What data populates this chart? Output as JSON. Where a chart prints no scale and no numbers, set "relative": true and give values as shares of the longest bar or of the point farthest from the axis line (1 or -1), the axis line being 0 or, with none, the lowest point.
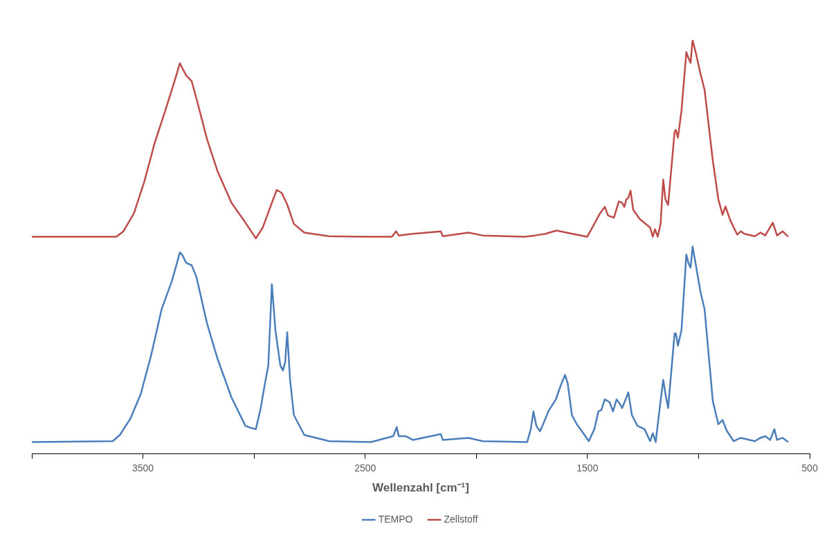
{
  "chart_data": {
    "type": "line",
    "relative": true,
    "xlabel": "Wellenzahl [cm⁻¹]",
    "xlim": [
      4000,
      500
    ],
    "xticks": [
      {
        "value": 4000,
        "label": null
      },
      3500,
      {
        "value": 3000,
        "label": null
      },
      2500,
      {
        "value": 2000,
        "label": null
      },
      1500,
      {
        "value": 1000,
        "label": null
      },
      500
    ],
    "grid": false,
    "legend": "bottom",
    "series": [
      {
        "name": "TEMPO",
        "color": "#4a7ebb",
        "x": [
          4000,
          3636,
          3604,
          3557,
          3510,
          3463,
          3416,
          3369,
          3334,
          3322,
          3306,
          3281,
          3259,
          3212,
          3165,
          3102,
          3039,
          3014,
          2992,
          2970,
          2951,
          2936,
          2920,
          2904,
          2882,
          2870,
          2860,
          2851,
          2838,
          2821,
          2774,
          2662,
          2474,
          2374,
          2358,
          2349,
          2317,
          2286,
          2160,
          2151,
          2035,
          1972,
          1771,
          1755,
          1743,
          1730,
          1714,
          1705,
          1673,
          1642,
          1620,
          1601,
          1589,
          1570,
          1548,
          1516,
          1494,
          1469,
          1451,
          1438,
          1422,
          1400,
          1385,
          1369,
          1353,
          1344,
          1331,
          1316,
          1300,
          1275,
          1243,
          1218,
          1206,
          1193,
          1171,
          1159,
          1149,
          1137,
          1108,
          1102,
          1093,
          1077,
          1055,
          1046,
          1036,
          1027,
          1011,
          992,
          973,
          936,
          911,
          892,
          873,
          842,
          810,
          747,
          722,
          700,
          678,
          659,
          647,
          622,
          597
        ],
        "values": [
          0.029,
          0.031,
          0.046,
          0.085,
          0.145,
          0.239,
          0.35,
          0.419,
          0.487,
          0.48,
          0.462,
          0.456,
          0.427,
          0.316,
          0.231,
          0.137,
          0.068,
          0.063,
          0.06,
          0.111,
          0.171,
          0.214,
          0.41,
          0.299,
          0.214,
          0.202,
          0.222,
          0.294,
          0.179,
          0.094,
          0.046,
          0.031,
          0.029,
          0.043,
          0.065,
          0.043,
          0.043,
          0.034,
          0.048,
          0.034,
          0.039,
          0.031,
          0.029,
          0.06,
          0.103,
          0.068,
          0.055,
          0.065,
          0.106,
          0.132,
          0.166,
          0.191,
          0.171,
          0.094,
          0.072,
          0.048,
          0.031,
          0.06,
          0.103,
          0.106,
          0.132,
          0.125,
          0.103,
          0.132,
          0.12,
          0.111,
          0.128,
          0.149,
          0.094,
          0.068,
          0.06,
          0.031,
          0.05,
          0.029,
          0.128,
          0.179,
          0.145,
          0.111,
          0.291,
          0.291,
          0.262,
          0.299,
          0.482,
          0.462,
          0.45,
          0.501,
          0.453,
          0.393,
          0.35,
          0.128,
          0.072,
          0.082,
          0.056,
          0.031,
          0.039,
          0.031,
          0.039,
          0.043,
          0.034,
          0.06,
          0.034,
          0.039,
          0.029
        ]
      },
      {
        "name": "Zellstoff",
        "color": "#be4b48",
        "x": [
          4000,
          3620,
          3588,
          3541,
          3494,
          3447,
          3400,
          3360,
          3334,
          3306,
          3281,
          3253,
          3212,
          3165,
          3102,
          3039,
          2992,
          2961,
          2920,
          2898,
          2876,
          2851,
          2821,
          2774,
          2662,
          2474,
          2380,
          2361,
          2349,
          2286,
          2160,
          2151,
          2035,
          1972,
          1783,
          1736,
          1689,
          1639,
          1595,
          1501,
          1469,
          1444,
          1422,
          1407,
          1381,
          1359,
          1344,
          1334,
          1325,
          1316,
          1306,
          1294,
          1265,
          1218,
          1206,
          1196,
          1184,
          1171,
          1159,
          1149,
          1137,
          1108,
          1102,
          1093,
          1077,
          1055,
          1046,
          1036,
          1027,
          1011,
          992,
          973,
          936,
          911,
          892,
          879,
          857,
          826,
          810,
          794,
          747,
          722,
          700,
          666,
          647,
          622,
          597
        ],
        "values": [
          0.525,
          0.525,
          0.538,
          0.581,
          0.658,
          0.752,
          0.829,
          0.897,
          0.944,
          0.915,
          0.901,
          0.846,
          0.761,
          0.684,
          0.607,
          0.559,
          0.521,
          0.547,
          0.607,
          0.638,
          0.631,
          0.603,
          0.556,
          0.535,
          0.526,
          0.525,
          0.525,
          0.538,
          0.528,
          0.532,
          0.538,
          0.526,
          0.535,
          0.528,
          0.525,
          0.528,
          0.532,
          0.54,
          0.535,
          0.525,
          0.556,
          0.581,
          0.597,
          0.576,
          0.571,
          0.61,
          0.607,
          0.597,
          0.615,
          0.619,
          0.636,
          0.59,
          0.568,
          0.547,
          0.525,
          0.543,
          0.525,
          0.556,
          0.663,
          0.615,
          0.602,
          0.778,
          0.783,
          0.764,
          0.829,
          0.971,
          0.957,
          0.945,
          1.0,
          0.966,
          0.92,
          0.88,
          0.709,
          0.615,
          0.578,
          0.598,
          0.564,
          0.53,
          0.538,
          0.532,
          0.526,
          0.535,
          0.528,
          0.559,
          0.528,
          0.538,
          0.525
        ]
      }
    ]
  }
}
